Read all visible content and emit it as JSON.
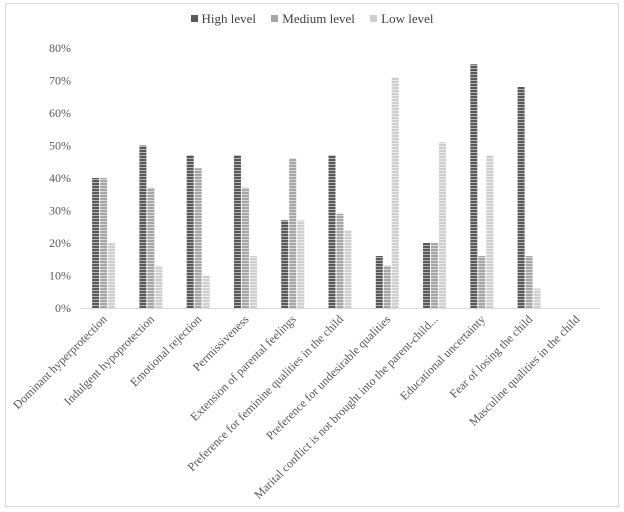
{
  "chart_data": {
    "type": "bar",
    "categories": [
      "Dominant hyperprotection",
      "Indulgent hypoprotection",
      "Emotional rejection",
      "Permissiveness",
      "Extension of parental feelings",
      "Preference for feminine qualities in the child",
      "Preference for undesirable qualities",
      "Marital conflict is not brought into the parent-child...",
      "Educational uncertainty",
      "Fear of losing the child",
      "Masculine qualities in the child"
    ],
    "series": [
      {
        "name": "High level",
        "values": [
          40,
          50,
          47,
          47,
          27,
          47,
          16,
          20,
          75,
          68,
          0
        ]
      },
      {
        "name": "Medium level",
        "values": [
          40,
          37,
          43,
          37,
          46,
          29,
          13,
          20,
          16,
          16,
          0
        ]
      },
      {
        "name": "Low level",
        "values": [
          20,
          13,
          10,
          16,
          27,
          24,
          71,
          51,
          47,
          6,
          0
        ]
      }
    ],
    "yticks": [
      "0%",
      "10%",
      "20%",
      "30%",
      "40%",
      "50%",
      "60%",
      "70%",
      "80%"
    ],
    "ylim": [
      0,
      80
    ],
    "grid": false,
    "legend_position": "top",
    "colors": [
      "#595959",
      "#a6a6a6",
      "#cfcfcf"
    ],
    "stroke_colors": [
      "#ffffff",
      "#ffffff",
      "#ffffff"
    ]
  }
}
